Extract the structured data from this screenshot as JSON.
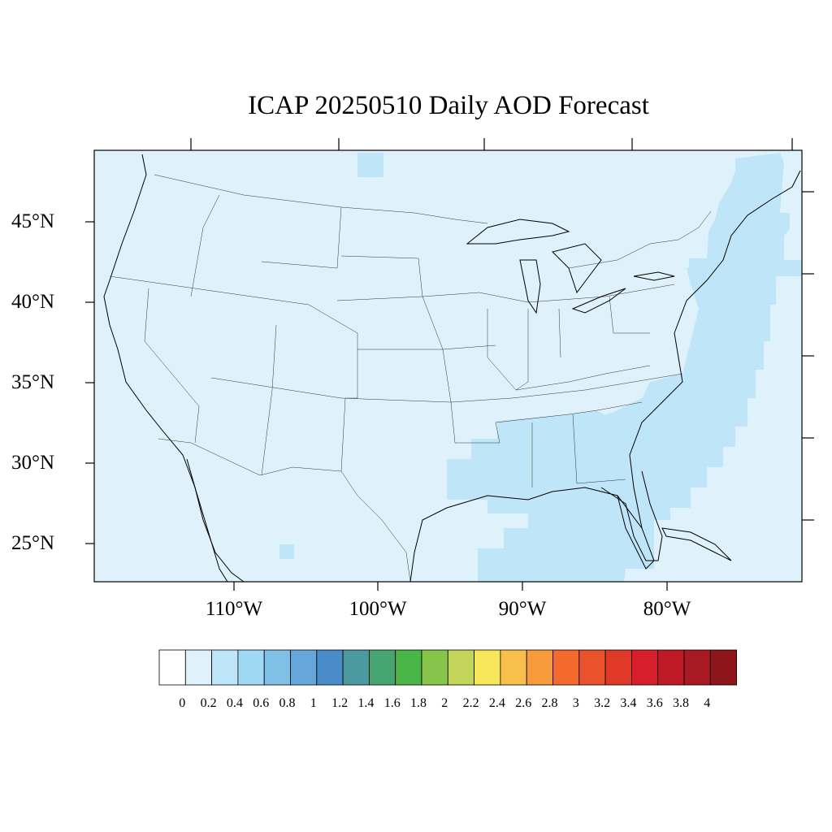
{
  "chart_data": {
    "type": "heatmap",
    "title": "ICAP 20250510 Daily AOD Forecast",
    "lat_ticks": [
      "45°N",
      "40°N",
      "35°N",
      "30°N",
      "25°N"
    ],
    "lon_ticks": [
      "110°W",
      "100°W",
      "90°W",
      "80°W"
    ],
    "lat_range": [
      22.5,
      49.5
    ],
    "lon_range": [
      -119.5,
      -70.5
    ],
    "colorbar": {
      "levels": [
        "0",
        "0.2",
        "0.4",
        "0.6",
        "0.8",
        "1",
        "1.2",
        "1.4",
        "1.6",
        "1.8",
        "2",
        "2.2",
        "2.4",
        "2.6",
        "2.8",
        "3",
        "3.2",
        "3.4",
        "3.6",
        "3.8",
        "4"
      ],
      "colors": [
        "#ffffff",
        "#dff2fb",
        "#bfe6f8",
        "#9fd8f3",
        "#80bfe6",
        "#66a6da",
        "#4a8bc9",
        "#4a9a9f",
        "#45a672",
        "#4ab648",
        "#86c44a",
        "#c3d65a",
        "#f7e65a",
        "#f8c04a",
        "#f79a3c",
        "#f46a2c",
        "#e9522a",
        "#df3a27",
        "#d61f2a",
        "#bf1b27",
        "#a71a22",
        "#8e1519"
      ]
    },
    "background_level": "0-0.2",
    "regions_level_0_2_to_0_4": [
      "Gulf coast states and Gulf of Mexico",
      "Atlantic coast from Florida to New England"
    ]
  }
}
